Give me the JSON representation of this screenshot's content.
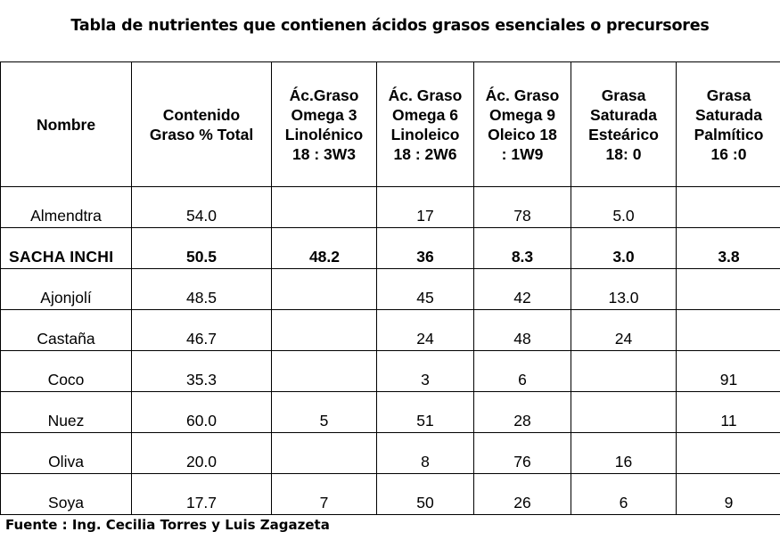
{
  "title": "Tabla de nutrientes que contienen ácidos grasos esenciales o precursores",
  "headers": [
    [
      "Nombre"
    ],
    [
      "Contenido",
      "Graso % Total"
    ],
    [
      "Ác.Graso",
      "Omega 3",
      "Linolénico",
      "18 : 3W3"
    ],
    [
      "Ác. Graso",
      "Omega 6",
      "Linoleico",
      "18 : 2W6"
    ],
    [
      "Ác. Graso",
      "Omega 9",
      "Oleico 18",
      ": 1W9"
    ],
    [
      "Grasa",
      "Saturada",
      "Esteárico",
      "18: 0"
    ],
    [
      "Grasa",
      "Saturada",
      "Palmítico",
      "16 :0"
    ]
  ],
  "rows": [
    {
      "name": "Almendtra",
      "total": "54.0",
      "omega3": "",
      "omega6": "17",
      "omega9": "78",
      "estearico": "5.0",
      "palmitico": "",
      "highlight": false
    },
    {
      "name": "SACHA INCHI",
      "total": "50.5",
      "omega3": "48.2",
      "omega6": "36",
      "omega9": "8.3",
      "estearico": "3.0",
      "palmitico": "3.8",
      "highlight": true
    },
    {
      "name": "Ajonjolí",
      "total": "48.5",
      "omega3": "",
      "omega6": "45",
      "omega9": "42",
      "estearico": "13.0",
      "palmitico": "",
      "highlight": false
    },
    {
      "name": "Castaña",
      "total": "46.7",
      "omega3": "",
      "omega6": "24",
      "omega9": "48",
      "estearico": "24",
      "palmitico": "",
      "highlight": false
    },
    {
      "name": "Coco",
      "total": "35.3",
      "omega3": "",
      "omega6": "3",
      "omega9": "6",
      "estearico": "",
      "palmitico": "91",
      "highlight": false
    },
    {
      "name": "Nuez",
      "total": "60.0",
      "omega3": "5",
      "omega6": "51",
      "omega9": "28",
      "estearico": "",
      "palmitico": "11",
      "highlight": false
    },
    {
      "name": "Oliva",
      "total": "20.0",
      "omega3": "",
      "omega6": "8",
      "omega9": "76",
      "estearico": "16",
      "palmitico": "",
      "highlight": false
    },
    {
      "name": "Soya",
      "total": "17.7",
      "omega3": "7",
      "omega6": "50",
      "omega9": "26",
      "estearico": "6",
      "palmitico": "9",
      "highlight": false
    }
  ],
  "source": "Fuente : Ing. Cecilia Torres y Luis Zagazeta"
}
